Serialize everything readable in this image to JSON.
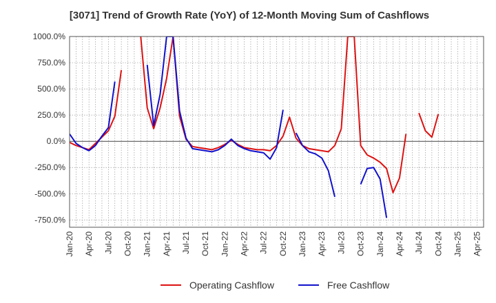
{
  "chart_data": {
    "type": "line",
    "title": "[3071]  Trend of Growth Rate (YoY) of 12-Month Moving Sum of Cashflows",
    "xlabel": "",
    "ylabel": "",
    "x": [
      "Jan-20",
      "Feb-20",
      "Mar-20",
      "Apr-20",
      "May-20",
      "Jun-20",
      "Jul-20",
      "Aug-20",
      "Sep-20",
      "Oct-20",
      "Nov-20",
      "Dec-20",
      "Jan-21",
      "Feb-21",
      "Mar-21",
      "Apr-21",
      "May-21",
      "Jun-21",
      "Jul-21",
      "Aug-21",
      "Sep-21",
      "Oct-21",
      "Nov-21",
      "Dec-21",
      "Jan-22",
      "Feb-22",
      "Mar-22",
      "Apr-22",
      "May-22",
      "Jun-22",
      "Jul-22",
      "Aug-22",
      "Sep-22",
      "Oct-22",
      "Nov-22",
      "Dec-22",
      "Jan-23",
      "Feb-23",
      "Mar-23",
      "Apr-23",
      "May-23",
      "Jun-23",
      "Jul-23",
      "Aug-23",
      "Sep-23",
      "Oct-23",
      "Nov-23",
      "Dec-23",
      "Jan-24",
      "Feb-24",
      "Mar-24",
      "Apr-24",
      "May-24",
      "Jun-24",
      "Jul-24",
      "Aug-24",
      "Sep-24",
      "Oct-24",
      "Nov-24",
      "Dec-24",
      "Jan-25",
      "Feb-25",
      "Mar-25",
      "Apr-25"
    ],
    "x_tick_labels": [
      "Jan-20",
      "Apr-20",
      "Jul-20",
      "Oct-20",
      "Jan-21",
      "Apr-21",
      "Jul-21",
      "Oct-21",
      "Jan-22",
      "Apr-22",
      "Jul-22",
      "Oct-22",
      "Jan-23",
      "Apr-23",
      "Jul-23",
      "Oct-23",
      "Jan-24",
      "Apr-24",
      "Jul-24",
      "Oct-24",
      "Jan-25",
      "Apr-25"
    ],
    "y_tick_labels": [
      "1000.0%",
      "750.0%",
      "500.0%",
      "250.0%",
      "0.0%",
      "-250.0%",
      "-500.0%",
      "-750.0%"
    ],
    "y_ticks": [
      1000,
      750,
      500,
      250,
      0,
      -250,
      -500,
      -750
    ],
    "ylim": [
      -820,
      1000
    ],
    "grid": true,
    "legend_position": "bottom",
    "series": [
      {
        "name": "Operating Cashflow",
        "color": "#dd1111",
        "values": [
          -10,
          -40,
          -60,
          -80,
          -20,
          40,
          100,
          240,
          680,
          null,
          null,
          1000,
          320,
          120,
          320,
          600,
          1000,
          240,
          20,
          -50,
          -60,
          -70,
          -80,
          -60,
          -30,
          10,
          -30,
          -60,
          -70,
          -80,
          -80,
          -90,
          -40,
          50,
          230,
          30,
          -40,
          -70,
          -80,
          -90,
          -100,
          -40,
          120,
          1000,
          1000,
          -40,
          -130,
          -160,
          -200,
          -260,
          -490,
          -350,
          70,
          null,
          270,
          100,
          40,
          260,
          null,
          null,
          null,
          null,
          null,
          null
        ]
      },
      {
        "name": "Free Cashflow",
        "color": "#1010cc",
        "values": [
          70,
          -20,
          -60,
          -90,
          -40,
          50,
          130,
          570,
          null,
          null,
          null,
          null,
          730,
          150,
          450,
          1000,
          1000,
          290,
          30,
          -70,
          -80,
          -90,
          -100,
          -80,
          -40,
          20,
          -40,
          -70,
          -90,
          -100,
          -110,
          -170,
          -60,
          300,
          null,
          80,
          -40,
          -100,
          -120,
          -160,
          -280,
          -530,
          null,
          null,
          null,
          -410,
          -260,
          -250,
          -360,
          -730,
          null,
          null,
          null,
          null,
          null,
          null,
          null,
          null,
          null,
          null,
          null,
          null,
          null,
          null
        ]
      }
    ]
  }
}
